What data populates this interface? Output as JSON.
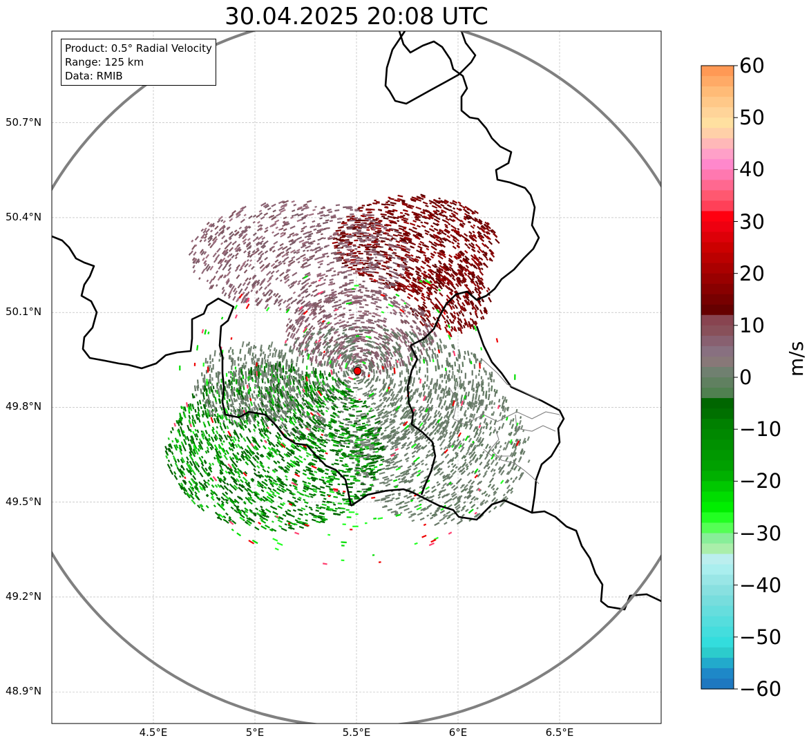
{
  "title": "30.04.2025 20:08 UTC",
  "info": {
    "product": "Product: 0.5° Radial Velocity",
    "range": "Range: 125 km",
    "data": "Data: RMIB"
  },
  "axes": {
    "lat_labels": [
      "50.7°N",
      "50.4°N",
      "50.1°N",
      "49.8°N",
      "49.5°N",
      "49.2°N",
      "48.9°N"
    ],
    "lon_labels": [
      "4.5°E",
      "5°E",
      "5.5°E",
      "6°E",
      "6.5°E"
    ],
    "lat_values": [
      50.7,
      50.4,
      50.1,
      49.8,
      49.5,
      49.2,
      48.9
    ],
    "lon_values": [
      4.5,
      5.0,
      5.5,
      6.0,
      6.5
    ],
    "lat_range": [
      48.8,
      50.99
    ],
    "lon_range": [
      4.0,
      7.0
    ],
    "grid": true
  },
  "radar": {
    "lat": 49.915,
    "lon": 5.505,
    "range_km": 125
  },
  "colorbar": {
    "label": "m/s",
    "min": -60,
    "max": 60,
    "ticks": [
      "60",
      "50",
      "40",
      "30",
      "20",
      "10",
      "0",
      "−10",
      "−20",
      "−30",
      "−40",
      "−50",
      "−60"
    ],
    "tick_values": [
      60,
      50,
      40,
      30,
      20,
      10,
      0,
      -10,
      -20,
      -30,
      -40,
      -50,
      -60
    ],
    "colors": [
      "#ff9955",
      "#ffaa66",
      "#ffbb77",
      "#ffc888",
      "#ffd499",
      "#ffe0a0",
      "#ffd0a8",
      "#ffb8b8",
      "#ffa0c8",
      "#ff88cc",
      "#ff78b0",
      "#ff6890",
      "#ff5870",
      "#ff4058",
      "#ff0010",
      "#ee0010",
      "#dd0008",
      "#cc0000",
      "#bb0000",
      "#aa0000",
      "#990000",
      "#880000",
      "#770000",
      "#660000",
      "#884450",
      "#88505a",
      "#886070",
      "#887080",
      "#887878",
      "#708070",
      "#608060",
      "#508050",
      "#006600",
      "#007000",
      "#008000",
      "#008800",
      "#009000",
      "#009800",
      "#00a000",
      "#00b000",
      "#00c800",
      "#00dd00",
      "#00ee00",
      "#22ff22",
      "#55ff55",
      "#88ee99",
      "#aaeeaa",
      "#bbeeee",
      "#aaeeee",
      "#99e6e6",
      "#88e0e0",
      "#77dddd",
      "#66dddd",
      "#55dddd",
      "#44dddd",
      "#33dddd",
      "#2ccccc",
      "#22aacc",
      "#1e88c8",
      "#1e78c0"
    ]
  },
  "colors": {
    "border": "#000000",
    "range_ring": "#808080",
    "admin_border": "#808080",
    "grid": "#b0b0b0",
    "radar_marker": "#ee0000"
  }
}
